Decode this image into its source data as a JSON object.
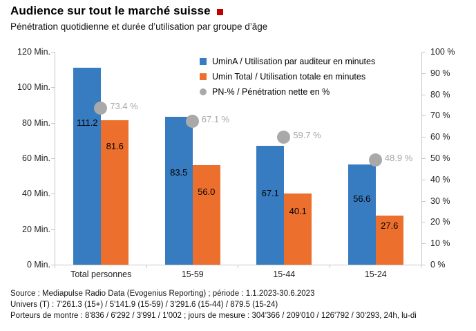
{
  "header": {
    "title": "Audience sur tout le marché suisse",
    "subtitle": "Pénétration quotidienne et durée d’utilisation par groupe d’âge",
    "brand_square_color": "#C00000"
  },
  "chart_data": {
    "type": "bar",
    "title": "Audience sur tout le marché suisse",
    "subtitle": "Pénétration quotidienne et durée d’utilisation par groupe d’âge",
    "categories": [
      "Total personnes",
      "15-59",
      "15-44",
      "15-24"
    ],
    "series": [
      {
        "name": "UminA / Utilisation par auditeur en minutes",
        "type": "bar",
        "axis": "left",
        "color": "#377CC1",
        "values": [
          111.2,
          83.5,
          67.1,
          56.6
        ],
        "labels": [
          "111.2",
          "83.5",
          "67.1",
          "56.6"
        ]
      },
      {
        "name": "Umin Total / Utilisation totale en minutes",
        "type": "bar",
        "axis": "left",
        "color": "#EC6F2D",
        "values": [
          81.6,
          56.0,
          40.1,
          27.6
        ],
        "labels": [
          "81.6",
          "56.0",
          "40.1",
          "27.6"
        ]
      },
      {
        "name": "PN-% / Pénétration nette en %",
        "type": "point",
        "axis": "right",
        "color": "#A9A9A9",
        "values": [
          73.4,
          67.1,
          59.7,
          48.9
        ],
        "labels": [
          "73.4 %",
          "67.1 %",
          "59.7 %",
          "48.9 %"
        ],
        "label_color": "#A6A6A6"
      }
    ],
    "left_axis": {
      "min": 0,
      "max": 120,
      "step": 20,
      "tick_labels": [
        "0 Min.",
        "20 Min.",
        "40 Min.",
        "60 Min.",
        "80 Min.",
        "100 Min.",
        "120 Min."
      ]
    },
    "right_axis": {
      "min": 0,
      "max": 100,
      "step": 10,
      "tick_labels": [
        "0 %",
        "10 %",
        "20 %",
        "30 %",
        "40 %",
        "50 %",
        "60 %",
        "70 %",
        "80 %",
        "90 %",
        "100 %"
      ]
    },
    "gridlines": false,
    "legend_position": "top-inside",
    "label_anchor_minutes": {
      "series0": [
        80,
        52,
        40.3,
        37
      ],
      "series1": [
        66.5,
        41,
        30,
        22
      ]
    }
  },
  "footer": {
    "lines": [
      "Source : Mediapulse Radio Data (Evogenius Reporting) ; période : 1.1.2023-30.6.2023",
      "Univers (T) : 7'261.3 (15+) / 5'141.9 (15-59) / 3'291.6 (15-44) / 879.5 (15-24)",
      "Porteurs de montre : 8'836 / 6'292 / 3'991 / 1'002 ; jours de mesure : 304'366 / 209'010 / 126'792 / 30'293, 24h, lu-di"
    ]
  }
}
